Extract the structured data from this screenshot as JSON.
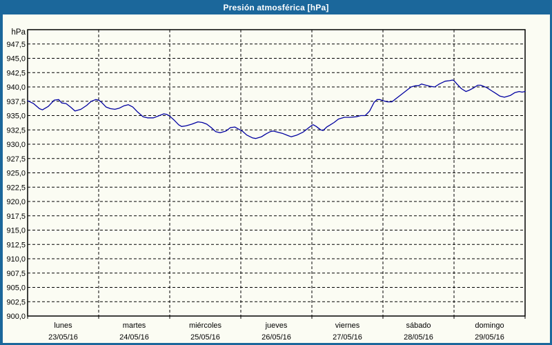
{
  "window": {
    "title": "Presión atmosférica [hPa]",
    "title_bar_color": "#1b679b",
    "background_color": "#fbfcf3"
  },
  "chart_data": {
    "type": "line",
    "title": "Presión atmosférica [hPa]",
    "grid": {
      "style": "dashed",
      "color": "#000000"
    },
    "legend": "none",
    "y_axis": {
      "unit": "hPa",
      "min": 900,
      "max": 950,
      "tick_step": 2.5,
      "ticks": [
        {
          "label": "947,5",
          "value": 947.5
        },
        {
          "label": "945,0",
          "value": 945.0
        },
        {
          "label": "942,5",
          "value": 942.5
        },
        {
          "label": "940,0",
          "value": 940.0
        },
        {
          "label": "937,5",
          "value": 937.5
        },
        {
          "label": "935,0",
          "value": 935.0
        },
        {
          "label": "932,5",
          "value": 932.5
        },
        {
          "label": "930,0",
          "value": 930.0
        },
        {
          "label": "927,5",
          "value": 927.5
        },
        {
          "label": "925,0",
          "value": 925.0
        },
        {
          "label": "922,5",
          "value": 922.5
        },
        {
          "label": "920,0",
          "value": 920.0
        },
        {
          "label": "917,5",
          "value": 917.5
        },
        {
          "label": "915,0",
          "value": 915.0
        },
        {
          "label": "912,5",
          "value": 912.5
        },
        {
          "label": "910,0",
          "value": 910.0
        },
        {
          "label": "907,5",
          "value": 907.5
        },
        {
          "label": "905,0",
          "value": 905.0
        },
        {
          "label": "902,5",
          "value": 902.5
        },
        {
          "label": "900,0",
          "value": 900.0
        }
      ]
    },
    "x_axis": {
      "hours_total": 168,
      "hours_per_day": 24,
      "days": [
        {
          "name": "lunes",
          "date": "23/05/16"
        },
        {
          "name": "martes",
          "date": "24/05/16"
        },
        {
          "name": "miércoles",
          "date": "25/05/16"
        },
        {
          "name": "jueves",
          "date": "26/05/16"
        },
        {
          "name": "viernes",
          "date": "27/05/16"
        },
        {
          "name": "sábado",
          "date": "28/05/16"
        },
        {
          "name": "domingo",
          "date": "29/05/16"
        }
      ]
    },
    "series": [
      {
        "name": "Presión atmosférica",
        "color": "#0000a0",
        "points": [
          [
            0,
            937.6
          ],
          [
            2,
            937.1
          ],
          [
            4,
            936.2
          ],
          [
            5,
            936.0
          ],
          [
            7,
            936.6
          ],
          [
            9,
            937.7
          ],
          [
            10.5,
            937.8
          ],
          [
            11.5,
            937.2
          ],
          [
            13,
            937.1
          ],
          [
            14.5,
            936.5
          ],
          [
            16,
            935.8
          ],
          [
            18,
            936.1
          ],
          [
            20,
            936.8
          ],
          [
            21.5,
            937.5
          ],
          [
            23,
            937.8
          ],
          [
            24,
            937.7
          ],
          [
            25,
            937.3
          ],
          [
            26.5,
            936.5
          ],
          [
            28,
            936.2
          ],
          [
            29.5,
            936.1
          ],
          [
            31,
            936.3
          ],
          [
            32.5,
            936.7
          ],
          [
            34,
            936.9
          ],
          [
            35.5,
            936.5
          ],
          [
            37,
            935.7
          ],
          [
            39,
            934.8
          ],
          [
            40.5,
            934.6
          ],
          [
            42.5,
            934.6
          ],
          [
            44.5,
            935.0
          ],
          [
            46,
            935.3
          ],
          [
            47,
            935.2
          ],
          [
            48,
            934.9
          ],
          [
            49.5,
            934.2
          ],
          [
            51,
            933.4
          ],
          [
            52,
            933.1
          ],
          [
            53.5,
            933.2
          ],
          [
            55.5,
            933.5
          ],
          [
            57.5,
            933.9
          ],
          [
            59,
            933.8
          ],
          [
            60.5,
            933.5
          ],
          [
            62,
            932.9
          ],
          [
            63.5,
            932.2
          ],
          [
            65,
            932.0
          ],
          [
            67,
            932.3
          ],
          [
            68.5,
            932.9
          ],
          [
            70,
            933.0
          ],
          [
            71,
            932.7
          ],
          [
            72.5,
            932.3
          ],
          [
            74,
            931.6
          ],
          [
            76,
            931.1
          ],
          [
            77,
            931.0
          ],
          [
            79,
            931.3
          ],
          [
            80.5,
            931.8
          ],
          [
            82,
            932.2
          ],
          [
            83,
            932.3
          ],
          [
            84.5,
            932.1
          ],
          [
            86,
            931.9
          ],
          [
            88,
            931.5
          ],
          [
            89,
            931.3
          ],
          [
            91,
            931.6
          ],
          [
            93,
            932.1
          ],
          [
            95,
            932.9
          ],
          [
            96,
            933.3
          ],
          [
            96.5,
            933.4
          ],
          [
            97.5,
            933.1
          ],
          [
            99,
            932.5
          ],
          [
            99.8,
            932.4
          ],
          [
            101,
            933.0
          ],
          [
            102,
            933.3
          ],
          [
            103.5,
            933.8
          ],
          [
            105,
            934.4
          ],
          [
            107,
            934.7
          ],
          [
            109,
            934.7
          ],
          [
            111,
            934.8
          ],
          [
            112.5,
            935.0
          ],
          [
            114,
            935.0
          ],
          [
            115.5,
            935.8
          ],
          [
            117,
            937.3
          ],
          [
            118,
            937.8
          ],
          [
            119,
            937.8
          ],
          [
            120,
            937.6
          ],
          [
            121.5,
            937.4
          ],
          [
            123,
            937.4
          ],
          [
            124.5,
            938.0
          ],
          [
            126,
            938.6
          ],
          [
            128,
            939.4
          ],
          [
            129.5,
            940.0
          ],
          [
            131,
            940.2
          ],
          [
            132,
            940.2
          ],
          [
            133,
            940.5
          ],
          [
            134.5,
            940.3
          ],
          [
            136,
            940.1
          ],
          [
            137.5,
            940.0
          ],
          [
            139,
            940.5
          ],
          [
            141,
            941.0
          ],
          [
            142.5,
            941.1
          ],
          [
            143.5,
            941.2
          ],
          [
            144,
            941.1
          ],
          [
            145,
            940.5
          ],
          [
            146.5,
            939.7
          ],
          [
            148,
            939.2
          ],
          [
            149,
            939.4
          ],
          [
            150.5,
            939.8
          ],
          [
            152,
            940.3
          ],
          [
            153,
            940.3
          ],
          [
            155,
            939.9
          ],
          [
            156.5,
            939.4
          ],
          [
            158,
            938.9
          ],
          [
            159.5,
            938.4
          ],
          [
            161,
            938.2
          ],
          [
            163,
            938.5
          ],
          [
            164.5,
            939.0
          ],
          [
            166,
            939.2
          ],
          [
            167,
            939.1
          ],
          [
            168,
            939.2
          ]
        ]
      }
    ]
  }
}
